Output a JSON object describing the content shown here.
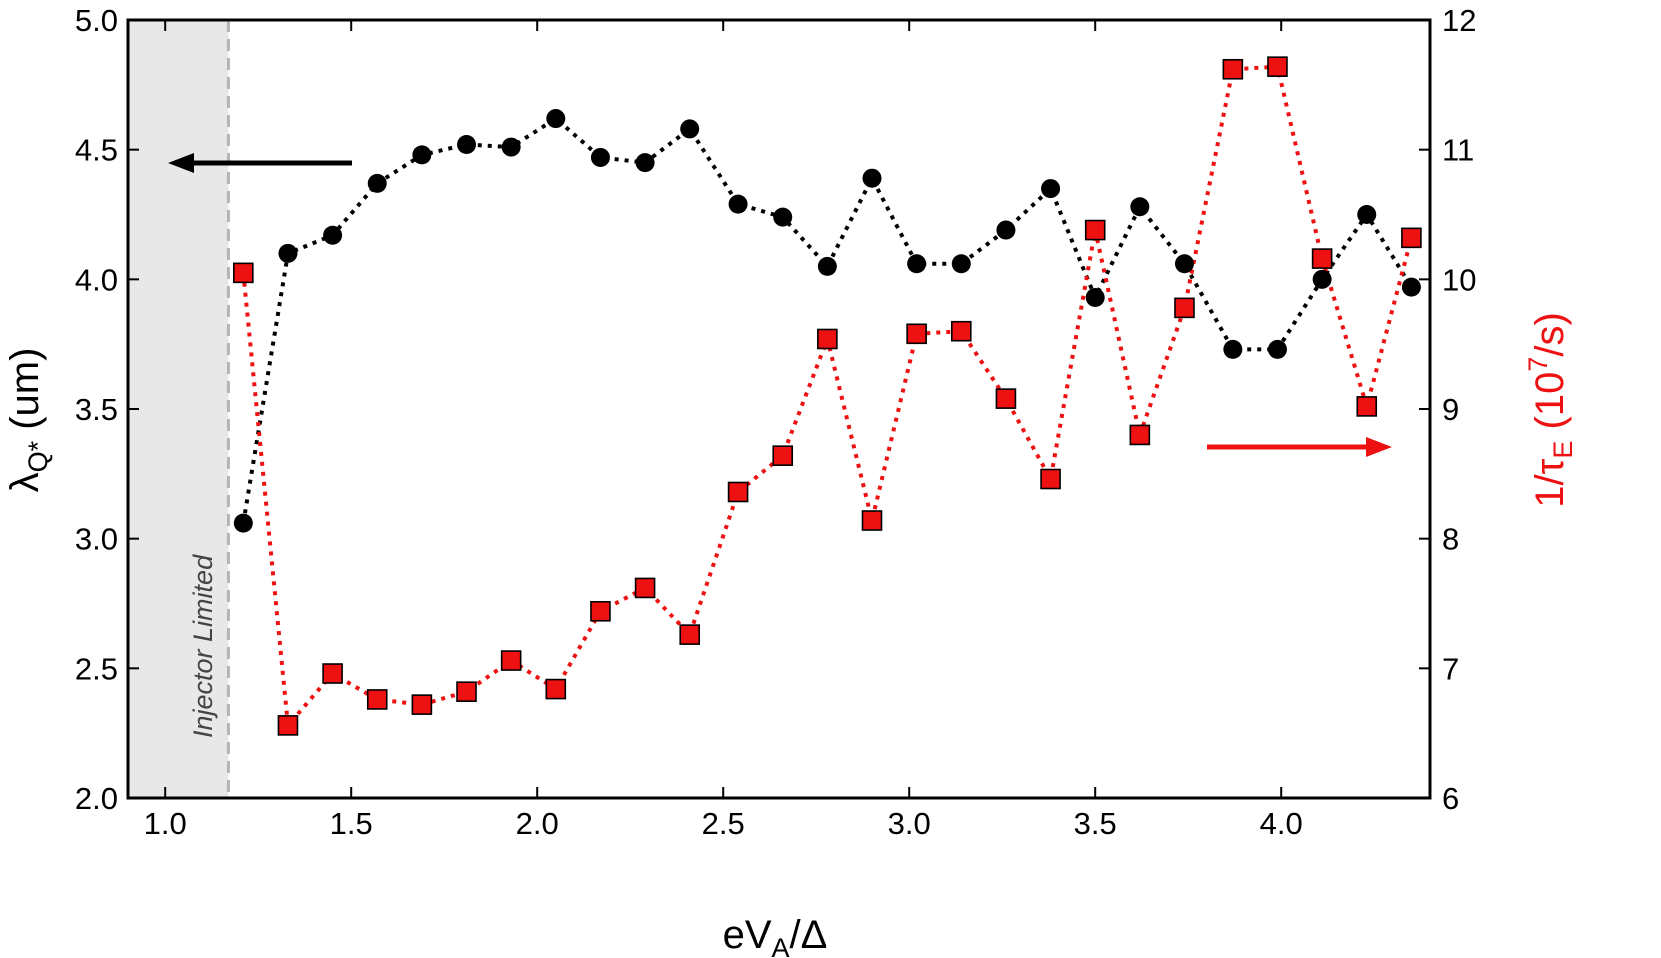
{
  "chart_data": {
    "type": "line",
    "xlabel": {
      "main": "eV",
      "sub": "A",
      "tail": "/Δ"
    },
    "ylabel_left": {
      "main": "λ",
      "sub": "Q*",
      "tail": " (um)"
    },
    "ylabel_right": {
      "main": "1/τ",
      "sub": "E",
      "mid": " (10",
      "sup": "7",
      "tail": "/s)"
    },
    "xlim": [
      0.9,
      4.4
    ],
    "ylim_left": [
      2.0,
      5.0
    ],
    "ylim_right": [
      6,
      12
    ],
    "x_ticks": [
      "1.0",
      "1.5",
      "2.0",
      "2.5",
      "3.0",
      "3.5",
      "4.0"
    ],
    "y_left_ticks": [
      "2.0",
      "2.5",
      "3.0",
      "3.5",
      "4.0",
      "4.5",
      "5.0"
    ],
    "y_right_ticks": [
      "6",
      "7",
      "8",
      "9",
      "10",
      "11",
      "12"
    ],
    "grid": false,
    "shaded_region": {
      "x_range": [
        0.9,
        1.17
      ],
      "label": "Injector Limited",
      "color": "#e8e8e8"
    },
    "series": [
      {
        "axis": "left",
        "color": "#000000",
        "marker": "circle",
        "line_style": "dotted",
        "x": [
          1.21,
          1.33,
          1.45,
          1.57,
          1.69,
          1.81,
          1.93,
          2.05,
          2.17,
          2.29,
          2.41,
          2.54,
          2.66,
          2.78,
          2.9,
          3.02,
          3.14,
          3.26,
          3.38,
          3.5,
          3.62,
          3.74,
          3.87,
          3.99,
          4.11,
          4.23,
          4.35
        ],
        "values": [
          3.06,
          4.1,
          4.17,
          4.37,
          4.48,
          4.52,
          4.51,
          4.62,
          4.47,
          4.45,
          4.58,
          4.29,
          4.24,
          4.05,
          4.39,
          4.06,
          4.06,
          4.19,
          4.35,
          3.93,
          4.28,
          4.06,
          3.73,
          3.73,
          4.0,
          4.25,
          3.97
        ]
      },
      {
        "axis": "right",
        "color": "#ee1111",
        "marker": "square",
        "line_style": "dotted",
        "x": [
          1.21,
          1.33,
          1.45,
          1.57,
          1.69,
          1.81,
          1.93,
          2.05,
          2.17,
          2.29,
          2.41,
          2.54,
          2.66,
          2.78,
          2.9,
          3.02,
          3.14,
          3.26,
          3.38,
          3.5,
          3.62,
          3.74,
          3.87,
          3.99,
          4.11,
          4.23,
          4.35
        ],
        "values": [
          10.05,
          6.56,
          6.96,
          6.76,
          6.72,
          6.82,
          7.06,
          6.84,
          7.44,
          7.62,
          7.26,
          8.36,
          8.64,
          9.54,
          8.14,
          9.58,
          9.6,
          9.08,
          8.46,
          10.38,
          8.8,
          9.78,
          11.62,
          11.64,
          10.16,
          9.02,
          10.32
        ]
      }
    ],
    "annotations": [
      {
        "type": "arrow",
        "direction": "left",
        "color": "#000000",
        "target_axis": "left"
      },
      {
        "type": "arrow",
        "direction": "right",
        "color": "#ee1111",
        "target_axis": "right"
      }
    ]
  }
}
